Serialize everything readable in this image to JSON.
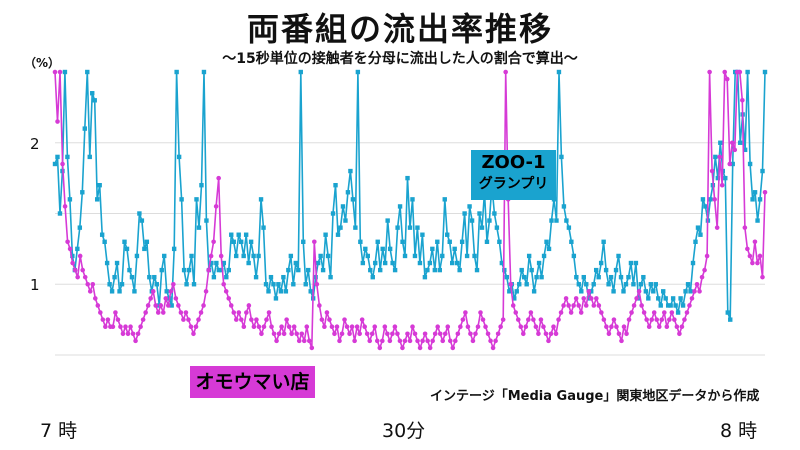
{
  "title": "両番組の流出率推移",
  "subtitle": "～15秒単位の接触者を分母に流出した人の割合で算出～",
  "unit_label": "（%）",
  "source_note": "インテージ「Media Gauge」関東地区データから作成",
  "colors": {
    "blue": "#1aa3cf",
    "pink": "#d63ad6",
    "grid": "#dddddd"
  },
  "chart_data": {
    "type": "line",
    "ylim": [
      0.5,
      2.5
    ],
    "yticks": [
      {
        "value": 1,
        "label": "1"
      },
      {
        "value": 2,
        "label": "2"
      }
    ],
    "xticks": [
      {
        "value": 0,
        "label": "7 時"
      },
      {
        "value": 30,
        "label": "30分"
      },
      {
        "value": 60,
        "label": "8 時"
      }
    ],
    "xlim": [
      0,
      60
    ],
    "grid": true,
    "series": [
      {
        "name": "ZOO-1 グランプリ",
        "label_lines": [
          "ZOO-1",
          "グランプリ"
        ],
        "color": "#1aa3cf",
        "marker": "square",
        "values": [
          1.85,
          1.9,
          1.5,
          1.8,
          2.5,
          1.9,
          1.6,
          1.2,
          1.1,
          1.25,
          1.4,
          1.65,
          2.1,
          2.5,
          1.9,
          2.35,
          2.3,
          1.6,
          1.7,
          1.35,
          1.3,
          1.15,
          1.0,
          0.95,
          1.05,
          1.15,
          0.95,
          1.0,
          1.3,
          1.25,
          1.1,
          1.05,
          0.95,
          1.2,
          1.5,
          1.45,
          1.25,
          1.3,
          1.05,
          0.95,
          1.05,
          1.0,
          0.85,
          1.1,
          1.2,
          0.95,
          0.9,
          0.85,
          1.25,
          2.5,
          1.9,
          1.6,
          1.1,
          1.0,
          1.1,
          1.2,
          1.0,
          1.6,
          1.4,
          1.7,
          2.5,
          1.45,
          1.1,
          1.15,
          1.05,
          1.15,
          1.1,
          1.1,
          1.15,
          1.05,
          1.1,
          1.35,
          1.3,
          1.2,
          1.35,
          1.3,
          1.2,
          1.35,
          1.15,
          1.3,
          1.2,
          1.05,
          1.2,
          1.6,
          1.4,
          1.0,
          0.95,
          1.05,
          1.0,
          0.9,
          1.0,
          0.95,
          1.05,
          0.95,
          1.1,
          1.2,
          1.0,
          1.15,
          1.1,
          2.5,
          1.3,
          1.0,
          1.1,
          0.95,
          0.9,
          1.05,
          1.15,
          1.2,
          1.1,
          1.35,
          1.2,
          1.05,
          1.5,
          1.7,
          1.35,
          1.4,
          1.55,
          1.45,
          1.65,
          1.8,
          1.6,
          1.4,
          2.5,
          1.3,
          1.15,
          1.25,
          1.2,
          1.1,
          1.05,
          1.15,
          1.3,
          1.1,
          1.25,
          1.15,
          1.45,
          1.25,
          1.15,
          1.1,
          1.4,
          1.55,
          1.3,
          1.2,
          1.75,
          1.4,
          1.6,
          1.2,
          1.4,
          1.15,
          1.35,
          1.05,
          1.1,
          1.15,
          1.25,
          1.1,
          1.3,
          1.1,
          1.2,
          1.6,
          1.35,
          1.3,
          1.15,
          1.25,
          1.15,
          1.1,
          1.3,
          1.5,
          1.2,
          1.55,
          1.45,
          1.2,
          1.1,
          1.5,
          1.4,
          1.65,
          1.3,
          1.45,
          1.7,
          1.5,
          1.4,
          1.3,
          1.15,
          1.1,
          1.05,
          0.95,
          1.0,
          0.9,
          0.95,
          1.0,
          1.1,
          1.05,
          1.0,
          1.2,
          1.1,
          0.95,
          1.05,
          1.15,
          1.05,
          1.2,
          1.3,
          1.25,
          1.45,
          1.6,
          1.45,
          2.5,
          1.9,
          1.55,
          1.45,
          1.4,
          1.3,
          1.2,
          1.05,
          1.0,
          0.95,
          1.05,
          1.0,
          0.9,
          0.95,
          1.0,
          1.1,
          1.05,
          1.15,
          1.3,
          1.1,
          1.0,
          1.05,
          0.95,
          1.1,
          1.2,
          1.05,
          0.95,
          1.0,
          1.05,
          1.15,
          1.0,
          1.15,
          0.9,
          1.0,
          1.05,
          0.95,
          0.9,
          1.0,
          0.95,
          1.0,
          0.9,
          0.85,
          0.95,
          0.9,
          0.85,
          0.85,
          0.9,
          0.85,
          0.8,
          0.9,
          0.85,
          0.95,
          1.0,
          0.95,
          1.15,
          1.3,
          1.4,
          1.35,
          1.6,
          1.55,
          1.45,
          1.6,
          1.7,
          1.9,
          1.75,
          2.0,
          1.8,
          1.75,
          0.8,
          0.75,
          1.85,
          2.5,
          2.5,
          2.0,
          2.2,
          1.95,
          2.5,
          1.85,
          1.6,
          1.65,
          1.45,
          1.6,
          1.8,
          2.5
        ]
      },
      {
        "name": "オモウマい店",
        "label_lines": [
          "オモウマい店"
        ],
        "color": "#d63ad6",
        "marker": "circle",
        "values": [
          2.5,
          2.15,
          2.5,
          1.85,
          1.55,
          1.3,
          1.25,
          1.15,
          1.1,
          1.05,
          1.2,
          1.1,
          1.05,
          1.0,
          0.95,
          1.0,
          0.9,
          0.85,
          0.8,
          0.75,
          0.7,
          0.75,
          0.7,
          0.7,
          0.8,
          0.75,
          0.7,
          0.65,
          0.7,
          0.65,
          0.7,
          0.65,
          0.6,
          0.65,
          0.7,
          0.75,
          0.8,
          0.85,
          0.9,
          0.95,
          0.85,
          0.8,
          0.85,
          0.8,
          0.9,
          0.85,
          0.95,
          1.0,
          0.9,
          0.85,
          0.8,
          0.75,
          0.8,
          0.75,
          0.7,
          0.65,
          0.7,
          0.75,
          0.8,
          0.85,
          0.95,
          1.1,
          1.2,
          1.3,
          1.55,
          1.75,
          1.2,
          1.0,
          0.95,
          0.9,
          0.85,
          0.8,
          0.75,
          0.8,
          0.75,
          0.7,
          0.8,
          0.85,
          0.75,
          0.7,
          0.75,
          0.7,
          0.65,
          0.7,
          0.75,
          0.8,
          0.7,
          0.65,
          0.6,
          0.65,
          0.7,
          0.65,
          0.75,
          0.7,
          0.65,
          0.7,
          0.65,
          0.6,
          0.65,
          0.6,
          0.7,
          0.6,
          0.55,
          1.3,
          1.0,
          0.85,
          0.75,
          0.7,
          0.8,
          0.75,
          0.7,
          0.65,
          0.7,
          0.6,
          0.65,
          0.75,
          0.7,
          0.65,
          0.7,
          0.6,
          0.7,
          0.65,
          0.75,
          0.7,
          0.65,
          0.6,
          0.65,
          0.7,
          0.6,
          0.55,
          0.6,
          0.7,
          0.65,
          0.6,
          0.65,
          0.7,
          0.65,
          0.6,
          0.55,
          0.6,
          0.65,
          0.6,
          0.7,
          0.65,
          0.6,
          0.55,
          0.6,
          0.65,
          0.6,
          0.55,
          0.6,
          0.65,
          0.7,
          0.65,
          0.6,
          0.65,
          0.7,
          0.6,
          0.55,
          0.6,
          0.65,
          0.7,
          0.75,
          0.8,
          0.7,
          0.65,
          0.6,
          0.65,
          0.7,
          0.8,
          0.75,
          0.7,
          0.65,
          0.6,
          0.55,
          0.6,
          0.65,
          0.7,
          0.75,
          2.5,
          1.6,
          1.0,
          0.85,
          0.8,
          0.75,
          0.7,
          0.65,
          0.7,
          0.75,
          0.8,
          0.75,
          0.7,
          0.65,
          0.75,
          0.7,
          0.65,
          0.6,
          0.65,
          0.7,
          0.65,
          0.75,
          0.8,
          0.85,
          0.9,
          0.85,
          0.8,
          0.85,
          0.9,
          0.85,
          0.8,
          0.9,
          0.85,
          0.95,
          0.9,
          0.85,
          0.9,
          0.85,
          0.8,
          0.75,
          0.7,
          0.65,
          0.7,
          0.75,
          0.7,
          0.65,
          0.6,
          0.7,
          0.65,
          0.75,
          0.8,
          0.85,
          0.9,
          0.95,
          0.85,
          0.8,
          0.75,
          0.7,
          0.75,
          0.8,
          0.75,
          0.7,
          0.75,
          0.8,
          0.7,
          0.75,
          0.8,
          0.75,
          0.7,
          0.65,
          0.7,
          0.75,
          0.8,
          0.85,
          0.9,
          0.95,
          1.0,
          0.95,
          1.05,
          1.1,
          1.2,
          2.5,
          1.8,
          1.6,
          1.4,
          1.9,
          1.7,
          2.5,
          2.45,
          1.85,
          2.0,
          1.95,
          2.5,
          2.5,
          2.3,
          1.4,
          1.25,
          1.2,
          1.15,
          1.3,
          1.15,
          1.2,
          1.05,
          1.65
        ]
      }
    ]
  }
}
